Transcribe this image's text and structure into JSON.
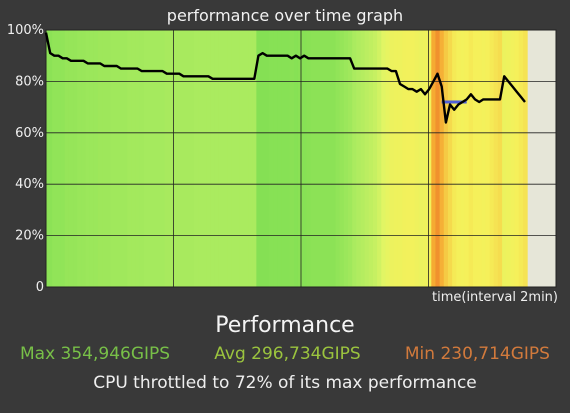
{
  "title": "performance over time graph",
  "xlabel": "time(interval 2min)",
  "heading": "Performance",
  "stats": {
    "max": "Max 354,946GIPS",
    "avg": "Avg 296,734GIPS",
    "min": "Min 230,714GIPS"
  },
  "summary": "CPU throttled to 72% of its max performance",
  "colors": {
    "max": "#78c048",
    "avg": "#9bc43e",
    "min": "#d27a3c",
    "line": "#000000",
    "band": "#4f60d8"
  },
  "chart_data": {
    "type": "line",
    "title": "performance over time graph",
    "xlabel": "time(interval 2min)",
    "ylabel": "",
    "y_ticks": [
      "100%",
      "80%",
      "60%",
      "40%",
      "20%",
      "0"
    ],
    "ylim": [
      0,
      100
    ],
    "grid": true,
    "series": [
      {
        "values": [
          99,
          91,
          90,
          90,
          89,
          89,
          88,
          88,
          88,
          88,
          87,
          87,
          87,
          87,
          86,
          86,
          86,
          86,
          85,
          85,
          85,
          85,
          85,
          84,
          84,
          84,
          84,
          84,
          84,
          83,
          83,
          83,
          83,
          82,
          82,
          82,
          82,
          82,
          82,
          82,
          81,
          81,
          81,
          81,
          81,
          81,
          81,
          81,
          81,
          81,
          81,
          90,
          91,
          90,
          90,
          90,
          90,
          90,
          90,
          89,
          90,
          89,
          90,
          89,
          89,
          89,
          89,
          89,
          89,
          89,
          89,
          89,
          89,
          89,
          85,
          85,
          85,
          85,
          85,
          85,
          85,
          85,
          85,
          84,
          84,
          79,
          78,
          77,
          77,
          76,
          77,
          75,
          77,
          80,
          83,
          78,
          64,
          71,
          69,
          71,
          72,
          73,
          75,
          73,
          72,
          73,
          73,
          73,
          73,
          73,
          82,
          80,
          78,
          76,
          74,
          72
        ]
      }
    ],
    "band": {
      "start_index": 79,
      "end_index": 85,
      "value": 72
    },
    "heat": [
      0.92,
      0.92,
      0.9,
      0.9,
      0.9,
      0.88,
      0.88,
      0.88,
      0.87,
      0.87,
      0.86,
      0.86,
      0.86,
      0.85,
      0.85,
      0.85,
      0.84,
      0.84,
      0.84,
      0.84,
      0.83,
      0.83,
      0.83,
      0.83,
      0.82,
      0.82,
      0.82,
      0.82,
      0.82,
      0.81,
      0.81,
      0.81,
      0.81,
      0.81,
      0.81,
      0.81,
      0.8,
      0.8,
      0.8,
      0.8,
      0.8,
      0.8,
      0.8,
      0.8,
      0.8,
      0.8,
      0.8,
      0.8,
      0.8,
      0.8,
      0.8,
      0.95,
      0.95,
      0.95,
      0.94,
      0.94,
      0.94,
      0.94,
      0.94,
      0.93,
      0.94,
      0.93,
      0.94,
      0.93,
      0.92,
      0.92,
      0.92,
      0.92,
      0.92,
      0.92,
      0.9,
      0.88,
      0.86,
      0.84,
      0.8,
      0.78,
      0.76,
      0.74,
      0.72,
      0.7,
      0.66,
      0.6,
      0.55,
      0.5,
      0.48,
      0.48,
      0.46,
      0.45,
      0.45,
      0.47,
      0.5,
      0.48,
      0.44,
      0.2,
      0.1,
      0.22,
      0.3,
      0.35,
      0.4,
      0.42,
      0.44,
      0.42,
      0.4,
      0.42,
      0.42,
      0.44,
      0.42,
      0.4,
      0.38,
      0.36,
      0.5,
      0.48,
      0.45,
      0.42,
      0.4,
      0.38
    ]
  }
}
